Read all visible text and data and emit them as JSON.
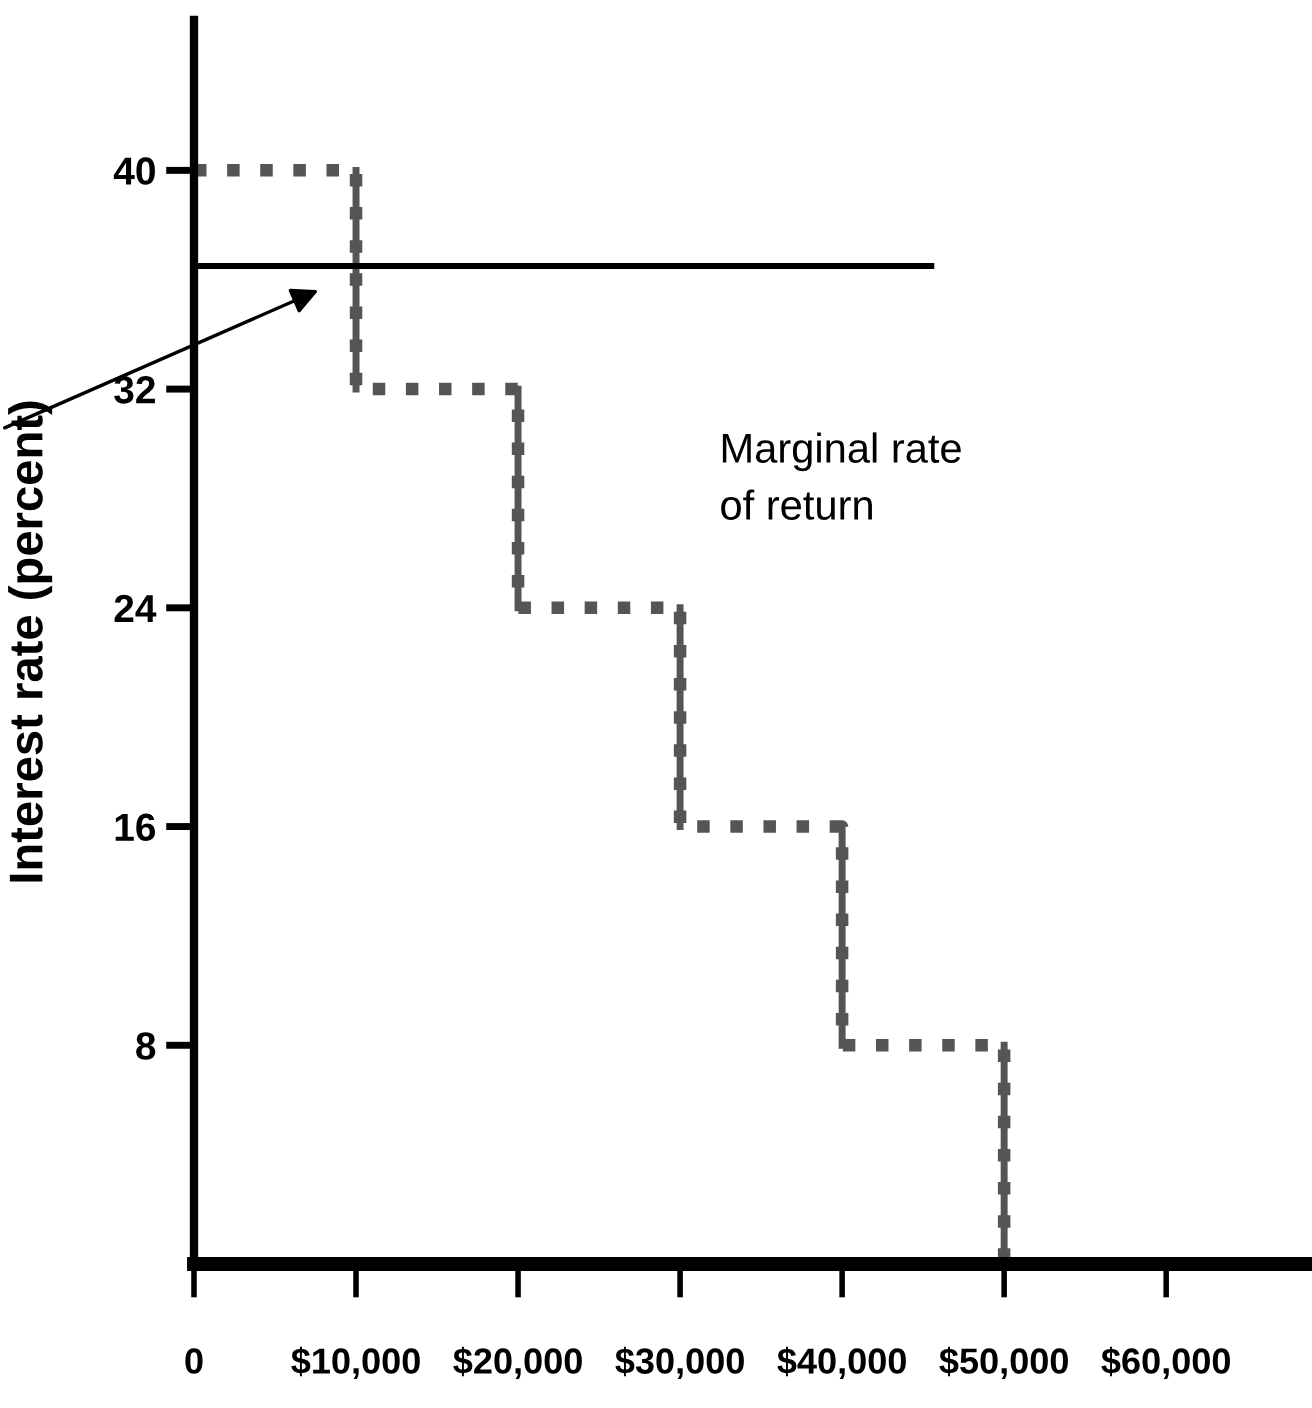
{
  "chart_data": {
    "type": "step",
    "ylabel": "Interest rate (percent)",
    "series": [
      {
        "color": "#555555",
        "line_style": "dotted",
        "x": [
          0,
          10000,
          20000,
          30000,
          40000,
          50000,
          60000
        ],
        "values": [
          40,
          32,
          24,
          16,
          8,
          0,
          0
        ]
      },
      {
        "type": "line",
        "color": "#000000",
        "line_style": "solid",
        "x": [
          0,
          45500
        ],
        "values": [
          36.5,
          36.5
        ]
      }
    ],
    "annotations": [
      "Marginal rate\nof return"
    ],
    "xlim": [
      0,
      69000
    ],
    "ylim": [
      0,
      45.5
    ],
    "xticks": [
      0,
      {
        "value": 10000,
        "label": "$10,000"
      },
      {
        "value": 20000,
        "label": "$20,000"
      },
      {
        "value": 30000,
        "label": "$30,000"
      },
      {
        "value": 40000,
        "label": "$40,000"
      },
      {
        "value": 50000,
        "label": "$50,000"
      },
      {
        "value": 60000,
        "label": "$60,000"
      }
    ],
    "yticks": [
      8,
      16,
      24,
      32,
      40
    ],
    "grid": false,
    "legend": false,
    "marker": "none"
  }
}
